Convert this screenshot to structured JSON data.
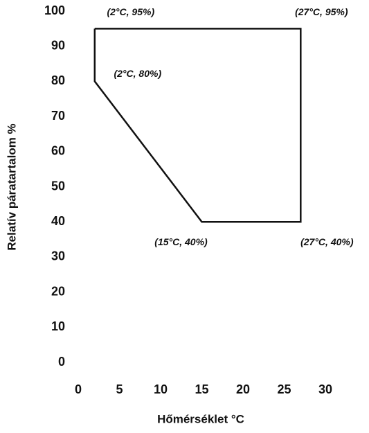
{
  "chart_data": {
    "type": "line",
    "x": [
      2,
      27,
      27,
      15,
      2,
      2
    ],
    "values": [
      95,
      95,
      40,
      40,
      80,
      95
    ],
    "color": "#111111",
    "xlabel": "Hőmérséklet °C",
    "ylabel": "Relatív páratartalom %",
    "xlim": [
      0,
      30
    ],
    "xticks": [
      0,
      5,
      10,
      15,
      20,
      25,
      30
    ],
    "ylim": [
      0,
      100
    ],
    "yticks": [
      0,
      10,
      20,
      30,
      40,
      50,
      60,
      70,
      80,
      90,
      100
    ],
    "grid": false,
    "annotations": [
      {
        "text": "(2°C, 95%)",
        "x": 2,
        "y": 95
      },
      {
        "text": "(27°C, 95%)",
        "x": 27,
        "y": 95
      },
      {
        "text": "(2°C, 80%)",
        "x": 2,
        "y": 80
      },
      {
        "text": "(15°C, 40%)",
        "x": 15,
        "y": 40
      },
      {
        "text": "(27°C, 40%)",
        "x": 27,
        "y": 40
      }
    ]
  }
}
